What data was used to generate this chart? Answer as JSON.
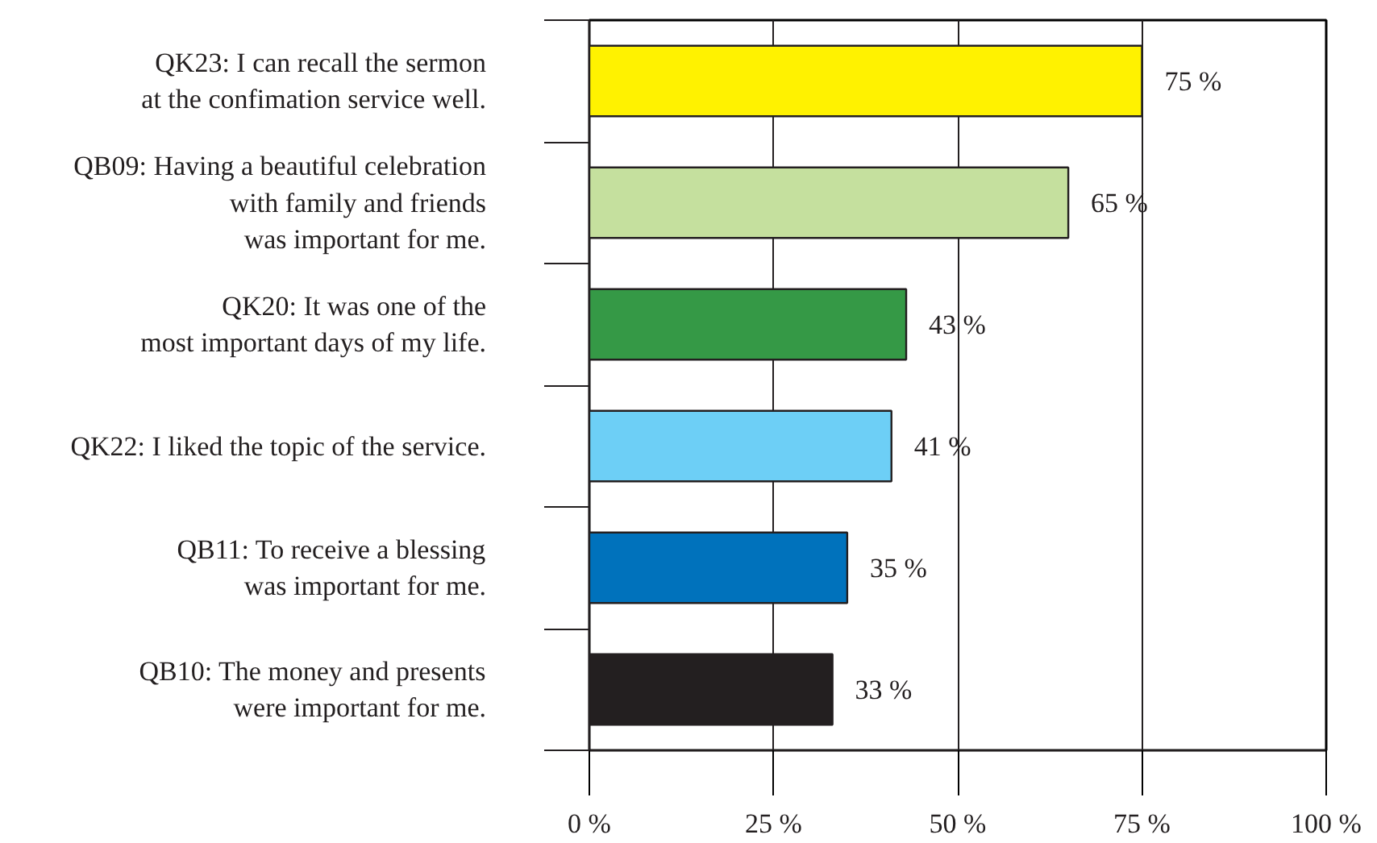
{
  "chart_data": {
    "type": "bar",
    "orientation": "horizontal",
    "categories": [
      "QK23: I can recall the sermon\nat the confimation service well.",
      "QB09: Having a beautiful celebration\nwith family and friends\nwas important for me.",
      "QK20: It was one of the\nmost important days of my life.",
      "QK22: I liked the topic of the service.",
      "QB11: To receive a blessing\nwas important for me.",
      "QB10: The money and presents\nwere important for me."
    ],
    "values": [
      75,
      65,
      43,
      41,
      35,
      33
    ],
    "colors": [
      "#fff200",
      "#c5e09e",
      "#359946",
      "#6dcff6",
      "#0072bc",
      "#231f20"
    ],
    "value_labels": [
      "75 %",
      "65 %",
      "43 %",
      "41 %",
      "35 %",
      "33 %"
    ],
    "xlim": [
      0,
      100
    ],
    "xticks": [
      {
        "value": 0,
        "label": "0 %"
      },
      {
        "value": 25,
        "label": "25 %"
      },
      {
        "value": 50,
        "label": "50 %"
      },
      {
        "value": 75,
        "label": "75 %"
      },
      {
        "value": 100,
        "label": "100 %"
      }
    ],
    "grid": "x"
  }
}
